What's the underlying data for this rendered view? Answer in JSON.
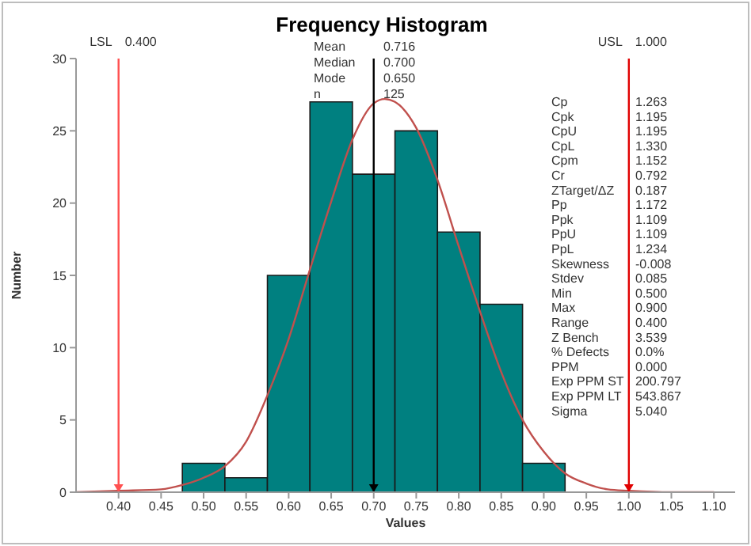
{
  "chart_data": {
    "type": "histogram",
    "title": "Frequency Histogram",
    "xlabel": "Values",
    "ylabel": "Number",
    "bins": [
      0.475,
      0.525,
      0.575,
      0.625,
      0.675,
      0.725,
      0.775,
      0.825,
      0.875,
      0.925
    ],
    "series": [
      {
        "color": "#008080",
        "values": [
          2,
          1,
          15,
          27,
          22,
          25,
          18,
          13,
          2
        ]
      },
      {
        "type": "line",
        "color": "#c0504d",
        "x": [
          0.35,
          0.4,
          0.45,
          0.475,
          0.5,
          0.525,
          0.55,
          0.575,
          0.6,
          0.625,
          0.65,
          0.675,
          0.7,
          0.713,
          0.725,
          0.75,
          0.775,
          0.8,
          0.825,
          0.85,
          0.875,
          0.9,
          0.925,
          0.95,
          0.975,
          1.0,
          1.05,
          1.1
        ],
        "values": [
          0,
          0.1,
          0.2,
          0.5,
          1.0,
          1.8,
          3.5,
          6.7,
          10.6,
          15.4,
          20.1,
          24.4,
          26.9,
          27.2,
          27.0,
          25.2,
          21.6,
          17.0,
          12.5,
          8.3,
          5.0,
          2.8,
          1.3,
          0.6,
          0.2,
          0.1,
          0,
          0
        ]
      }
    ],
    "xlim": [
      0.35,
      1.125
    ],
    "xticks": [
      {
        "value": 0.4,
        "label": "0.40"
      },
      {
        "value": 0.45,
        "label": "0.45"
      },
      {
        "value": 0.5,
        "label": "0.50"
      },
      {
        "value": 0.55,
        "label": "0.55"
      },
      {
        "value": 0.6,
        "label": "0.60"
      },
      {
        "value": 0.65,
        "label": "0.65"
      },
      {
        "value": 0.7,
        "label": "0.70"
      },
      {
        "value": 0.75,
        "label": "0.75"
      },
      {
        "value": 0.8,
        "label": "0.80"
      },
      {
        "value": 0.85,
        "label": "0.85"
      },
      {
        "value": 0.9,
        "label": "0.90"
      },
      {
        "value": 0.95,
        "label": "0.95"
      },
      {
        "value": 1.0,
        "label": "1.00"
      },
      {
        "value": 1.05,
        "label": "1.05"
      },
      {
        "value": 1.1,
        "label": "1.10"
      }
    ],
    "ylim": [
      0,
      30
    ],
    "yticks": [
      0,
      5,
      10,
      15,
      20,
      25,
      30
    ],
    "grid": false,
    "ref_lines": [
      {
        "axis": "x",
        "value": 0.4,
        "label": "LSL 0.400",
        "color": "#ff5050"
      },
      {
        "axis": "x",
        "value": 1.0,
        "label": "USL 1.000",
        "color": "#e00000"
      },
      {
        "axis": "x",
        "value": 0.7,
        "color": "#000000"
      }
    ],
    "annotations": [
      "Mean 0.716",
      "Median 0.700",
      "Mode 0.650",
      "n 125",
      "Cp 1.263",
      "Cpk 1.195",
      "CpU 1.195",
      "CpL 1.330",
      "Cpm 1.152",
      "Cr 0.792",
      "ZTarget/ΔZ 0.187",
      "Pp 1.172",
      "Ppk 1.109",
      "PpU 1.109",
      "PpL 1.234",
      "Skewness -0.008",
      "Stdev 0.085",
      "Min 0.500",
      "Max 0.900",
      "Range 0.400",
      "Z Bench 3.539",
      "% Defects 0.0%",
      "PPM 0.000",
      "Exp PPM ST 200.797",
      "Exp PPM LT 543.867",
      "Sigma 5.040"
    ]
  }
}
